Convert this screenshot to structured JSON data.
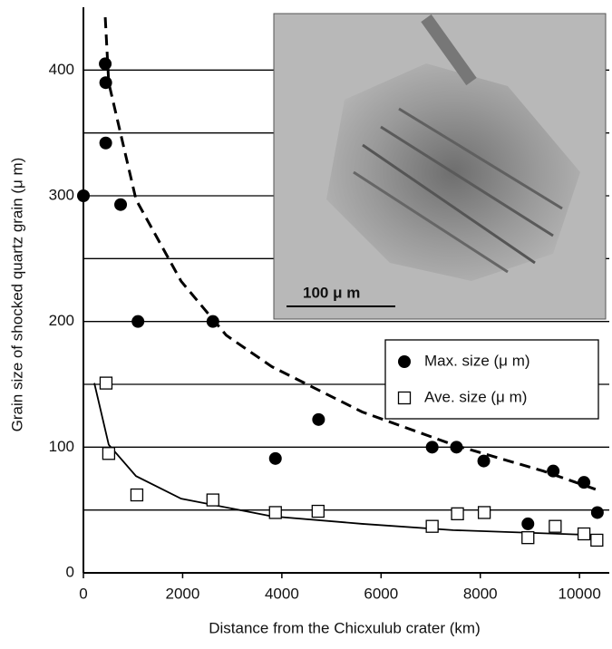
{
  "chart_data": {
    "type": "scatter",
    "xlabel": "Distance from the Chicxulub crater (km)",
    "ylabel": "Grain size of shocked quartz grain (μ m)",
    "xlim": [
      0,
      10600
    ],
    "ylim": [
      0,
      450
    ],
    "xticks": [
      0,
      2000,
      4000,
      6000,
      8000,
      10000
    ],
    "yticks": [
      0,
      100,
      200,
      300,
      400
    ],
    "minor_yticks": [
      50,
      150,
      250,
      350
    ],
    "grid": true,
    "legend": "right",
    "inset_scale_label": "100 μ m",
    "series": [
      {
        "name": "Max. size (μ m)",
        "marker": "circle",
        "color": "#000000",
        "x": [
          0,
          440,
          450,
          450,
          750,
          1100,
          2610,
          3870,
          4740,
          7030,
          7520,
          8070,
          8960,
          9470,
          10090,
          10360
        ],
        "values": [
          300,
          405,
          390,
          342,
          293,
          200,
          200,
          91,
          122,
          100,
          100,
          89,
          39,
          81,
          72,
          48
        ]
      },
      {
        "name": "Ave. size (μ m)",
        "marker": "square",
        "color": "#ffffff",
        "x": [
          456,
          510,
          1077,
          2610,
          3870,
          4730,
          7030,
          7540,
          8080,
          8960,
          9510,
          10090,
          10350
        ],
        "values": [
          151,
          95,
          62,
          58,
          48,
          49,
          37,
          47,
          48,
          28,
          37,
          31,
          26
        ]
      }
    ],
    "fits": [
      {
        "style": "dashed",
        "color": "#000000",
        "x": [
          440,
          510,
          1060,
          1970,
          2880,
          3800,
          5620,
          7450,
          9270,
          10360
        ],
        "values": [
          442,
          390,
          297,
          232,
          189,
          164,
          128,
          102,
          81,
          66
        ]
      },
      {
        "style": "solid",
        "color": "#000000",
        "x": [
          220,
          510,
          1060,
          1970,
          3800,
          5620,
          7450,
          10360
        ],
        "values": [
          151,
          102,
          77,
          59,
          45,
          39,
          34,
          30
        ]
      }
    ]
  }
}
